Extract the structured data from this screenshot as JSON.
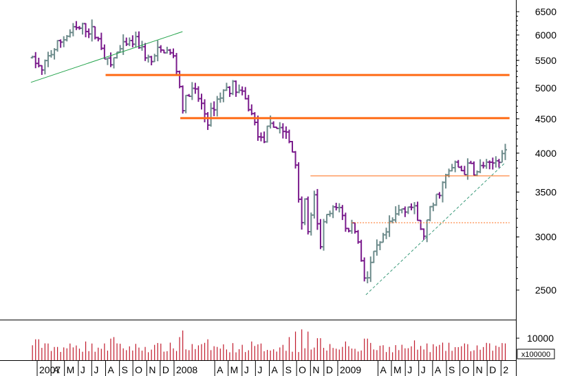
{
  "chart_data": {
    "type": "ohlc",
    "title": "",
    "price_axis": {
      "scale": "log",
      "ticks": [
        2500,
        3000,
        3500,
        4000,
        4500,
        5000,
        5500,
        6000,
        6500
      ],
      "labels": [
        "2500",
        "3000",
        "3500",
        "4000",
        "4500",
        "5000",
        "5500",
        "6000",
        "6500"
      ]
    },
    "volume_axis": {
      "ticks": [
        10000
      ],
      "labels": [
        "10000"
      ],
      "multiplier_label": "x100000"
    },
    "x_axis": {
      "labels": [
        "2007",
        "A",
        "M",
        "J",
        "J",
        "A",
        "S",
        "O",
        "N",
        "D",
        "2008",
        "A",
        "M",
        "J",
        "J",
        "A",
        "S",
        "O",
        "N",
        "D",
        "2009",
        "A",
        "M",
        "J",
        "J",
        "A",
        "S",
        "O",
        "N",
        "D",
        "2"
      ],
      "months": [
        "2007-03",
        "2007-04",
        "2007-05",
        "2007-06",
        "2007-07",
        "2007-08",
        "2007-09",
        "2007-10",
        "2007-11",
        "2007-12",
        "2008-01",
        "2008-04",
        "2008-05",
        "2008-06",
        "2008-07",
        "2008-08",
        "2008-09",
        "2008-10",
        "2008-11",
        "2008-12",
        "2009-01",
        "2009-04",
        "2009-05",
        "2009-06",
        "2009-07",
        "2009-08",
        "2009-09",
        "2009-10",
        "2009-11",
        "2009-12",
        "2010-01"
      ]
    },
    "price_anchors": [
      {
        "date": "2007-02-15",
        "value": 5550
      },
      {
        "date": "2007-03-01",
        "value": 5450
      },
      {
        "date": "2007-03-10",
        "value": 5250
      },
      {
        "date": "2007-03-25",
        "value": 5550
      },
      {
        "date": "2007-04-20",
        "value": 5850
      },
      {
        "date": "2007-05-20",
        "value": 6100
      },
      {
        "date": "2007-06-15",
        "value": 6150
      },
      {
        "date": "2007-07-05",
        "value": 6050
      },
      {
        "date": "2007-07-20",
        "value": 5850
      },
      {
        "date": "2007-08-10",
        "value": 5350
      },
      {
        "date": "2007-08-25",
        "value": 5650
      },
      {
        "date": "2007-09-20",
        "value": 5800
      },
      {
        "date": "2007-10-10",
        "value": 5900
      },
      {
        "date": "2007-10-25",
        "value": 5650
      },
      {
        "date": "2007-11-10",
        "value": 5450
      },
      {
        "date": "2007-11-25",
        "value": 5650
      },
      {
        "date": "2007-12-15",
        "value": 5700
      },
      {
        "date": "2007-12-31",
        "value": 5550
      },
      {
        "date": "2008-01-10",
        "value": 5200
      },
      {
        "date": "2008-01-21",
        "value": 4650
      },
      {
        "date": "2008-02-01",
        "value": 4900
      },
      {
        "date": "2008-02-15",
        "value": 4950
      },
      {
        "date": "2008-03-01",
        "value": 4750
      },
      {
        "date": "2008-03-17",
        "value": 4450
      },
      {
        "date": "2008-04-01",
        "value": 4750
      },
      {
        "date": "2008-04-20",
        "value": 4950
      },
      {
        "date": "2008-05-10",
        "value": 5050
      },
      {
        "date": "2008-05-25",
        "value": 4950
      },
      {
        "date": "2008-06-15",
        "value": 4700
      },
      {
        "date": "2008-07-01",
        "value": 4400
      },
      {
        "date": "2008-07-15",
        "value": 4150
      },
      {
        "date": "2008-08-01",
        "value": 4350
      },
      {
        "date": "2008-08-20",
        "value": 4400
      },
      {
        "date": "2008-09-05",
        "value": 4300
      },
      {
        "date": "2008-09-20",
        "value": 4050
      },
      {
        "date": "2008-10-01",
        "value": 3800
      },
      {
        "date": "2008-10-10",
        "value": 3100
      },
      {
        "date": "2008-10-20",
        "value": 3400
      },
      {
        "date": "2008-10-28",
        "value": 3000
      },
      {
        "date": "2008-11-10",
        "value": 3450
      },
      {
        "date": "2008-11-21",
        "value": 2850
      },
      {
        "date": "2008-12-01",
        "value": 3150
      },
      {
        "date": "2008-12-15",
        "value": 3250
      },
      {
        "date": "2009-01-05",
        "value": 3350
      },
      {
        "date": "2009-01-20",
        "value": 3050
      },
      {
        "date": "2009-02-05",
        "value": 3150
      },
      {
        "date": "2009-02-20",
        "value": 2850
      },
      {
        "date": "2009-03-05",
        "value": 2550
      },
      {
        "date": "2009-03-20",
        "value": 2800
      },
      {
        "date": "2009-04-10",
        "value": 2950
      },
      {
        "date": "2009-05-01",
        "value": 3150
      },
      {
        "date": "2009-05-20",
        "value": 3300
      },
      {
        "date": "2009-06-10",
        "value": 3350
      },
      {
        "date": "2009-06-25",
        "value": 3250
      },
      {
        "date": "2009-07-10",
        "value": 2980
      },
      {
        "date": "2009-07-25",
        "value": 3250
      },
      {
        "date": "2009-08-15",
        "value": 3500
      },
      {
        "date": "2009-09-01",
        "value": 3700
      },
      {
        "date": "2009-09-20",
        "value": 3850
      },
      {
        "date": "2009-10-10",
        "value": 3750
      },
      {
        "date": "2009-10-25",
        "value": 3850
      },
      {
        "date": "2009-11-05",
        "value": 3700
      },
      {
        "date": "2009-11-20",
        "value": 3850
      },
      {
        "date": "2009-12-05",
        "value": 3800
      },
      {
        "date": "2009-12-20",
        "value": 3900
      },
      {
        "date": "2010-01-05",
        "value": 4000
      },
      {
        "date": "2010-01-12",
        "value": 4050
      }
    ],
    "volume_spikes": [
      {
        "date": "2007-03-01",
        "value": 9500
      },
      {
        "date": "2007-06-15",
        "value": 8500
      },
      {
        "date": "2007-08-10",
        "value": 9800
      },
      {
        "date": "2007-08-20",
        "value": 10500
      },
      {
        "date": "2008-01-21",
        "value": 13500
      },
      {
        "date": "2008-01-15",
        "value": 10500
      },
      {
        "date": "2008-03-17",
        "value": 9500
      },
      {
        "date": "2008-06-20",
        "value": 8500
      },
      {
        "date": "2008-09-15",
        "value": 10500
      },
      {
        "date": "2008-10-01",
        "value": 13000
      },
      {
        "date": "2008-10-10",
        "value": 14000
      },
      {
        "date": "2008-10-24",
        "value": 13000
      },
      {
        "date": "2008-11-20",
        "value": 10000
      },
      {
        "date": "2009-01-20",
        "value": 8500
      },
      {
        "date": "2009-03-05",
        "value": 9800
      },
      {
        "date": "2009-06-19",
        "value": 9000
      }
    ],
    "reference_lines": [
      {
        "style": "thick",
        "color": "#ff6a13",
        "value": 5230,
        "from": "2007-08-01",
        "to": "2010-01-20"
      },
      {
        "style": "thick",
        "color": "#ff6a13",
        "value": 4510,
        "from": "2008-01-15",
        "to": "2010-01-20"
      },
      {
        "style": "thin",
        "color": "#ff6a13",
        "value": 3700,
        "from": "2008-11-01",
        "to": "2010-01-20"
      },
      {
        "style": "dotted",
        "color": "#ff6a13",
        "value": 3150,
        "from": "2009-02-01",
        "to": "2010-01-20"
      }
    ],
    "trend_lines": [
      {
        "color": "#22a34a",
        "style": "solid",
        "points": [
          {
            "date": "2007-02-15",
            "value": 5100
          },
          {
            "date": "2008-01-20",
            "value": 6070
          }
        ]
      },
      {
        "color": "#3a9a7a",
        "style": "dashed",
        "points": [
          {
            "date": "2009-03-05",
            "value": 2460
          },
          {
            "date": "2010-01-10",
            "value": 3870
          }
        ]
      }
    ],
    "colors": {
      "up": "#6e8c8c",
      "down": "#7a1b8c",
      "volume": "#c0182a",
      "frame": "#000000",
      "text": "#000000"
    },
    "grid": false
  }
}
